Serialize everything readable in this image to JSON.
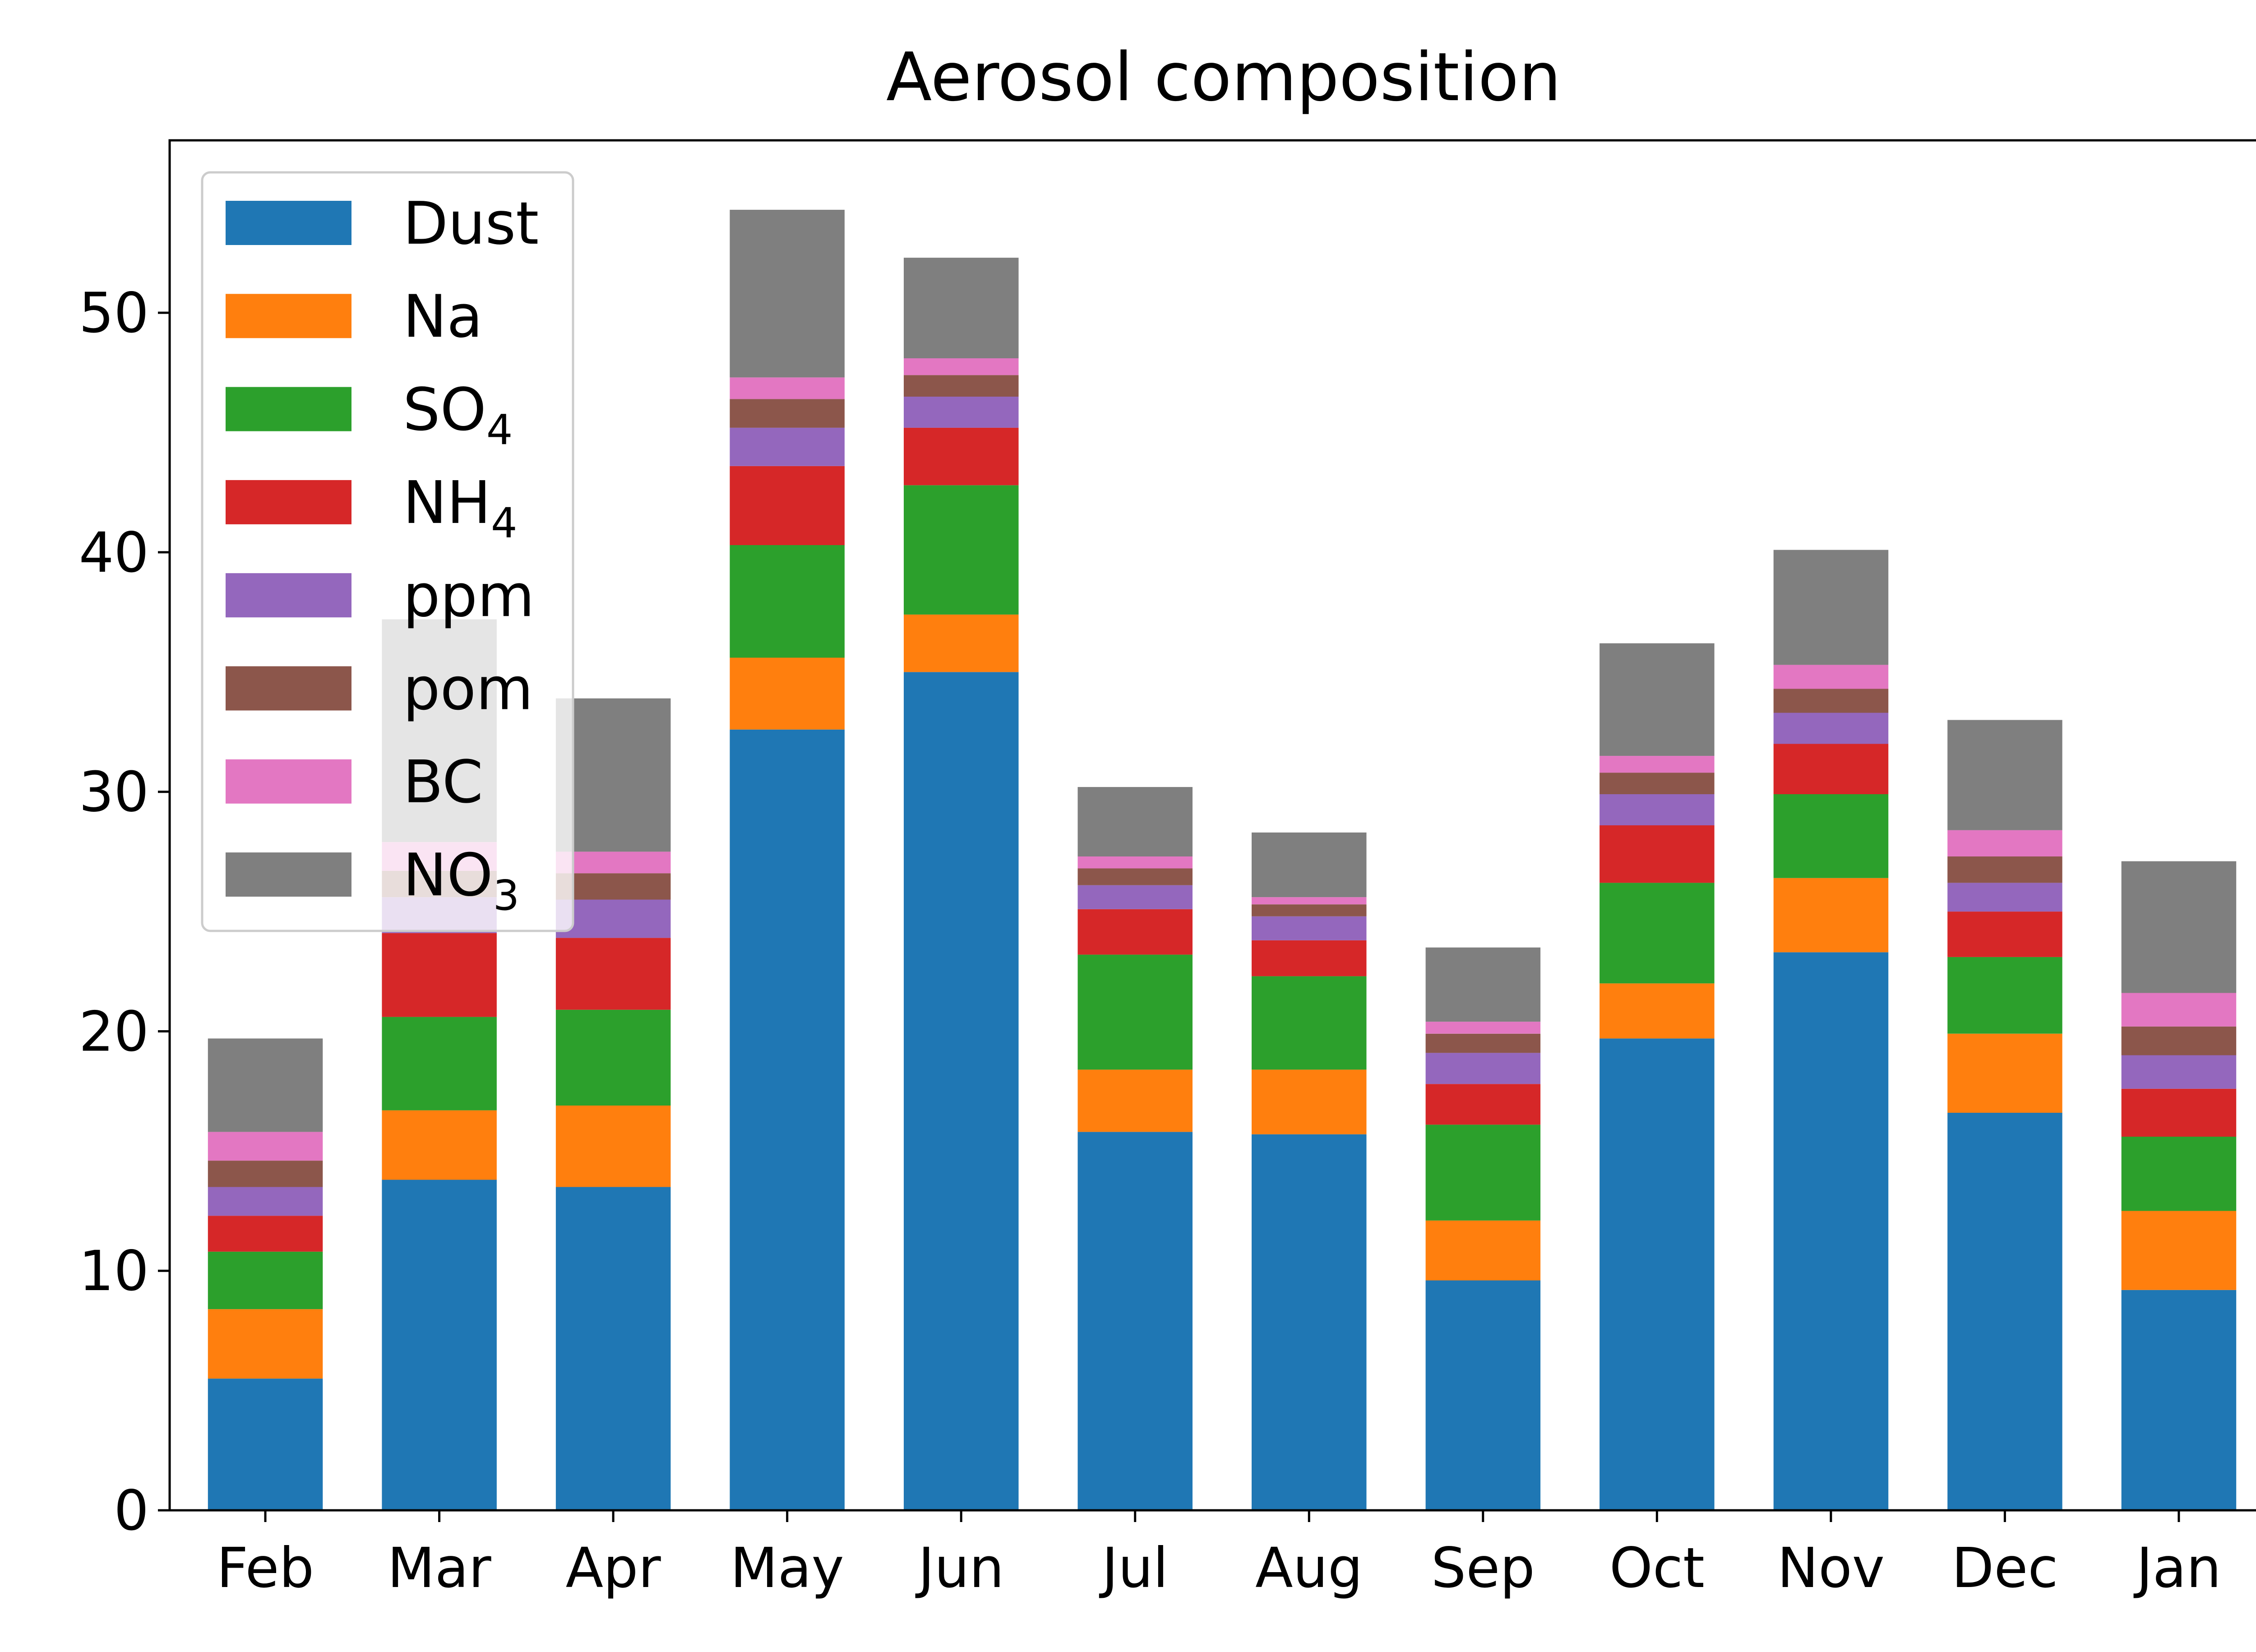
{
  "chart_data": {
    "type": "bar",
    "stacked": true,
    "title": "Aerosol composition",
    "xlabel": "",
    "ylabel": "",
    "categories": [
      "Feb",
      "Mar",
      "Apr",
      "May",
      "Jun",
      "Jul",
      "Aug",
      "Sep",
      "Oct",
      "Nov",
      "Dec",
      "Jan"
    ],
    "ylim": [
      0,
      57.2
    ],
    "yticks": [
      0,
      10,
      20,
      30,
      40,
      50
    ],
    "grid": false,
    "legend_position": "top-left",
    "series": [
      {
        "name": "Dust",
        "color": "#1f77b4",
        "values": [
          5.5,
          13.8,
          13.5,
          32.6,
          35.0,
          15.8,
          15.7,
          9.6,
          19.7,
          23.3,
          16.6,
          9.2
        ]
      },
      {
        "name": "Na",
        "color": "#ff7f0e",
        "values": [
          2.9,
          2.9,
          3.4,
          3.0,
          2.4,
          2.6,
          2.7,
          2.5,
          2.3,
          3.1,
          3.3,
          3.3
        ]
      },
      {
        "name": "SO4",
        "color": "#2ca02c",
        "values": [
          2.4,
          3.9,
          4.0,
          4.7,
          5.4,
          4.8,
          3.9,
          4.0,
          4.2,
          3.5,
          3.2,
          3.1
        ]
      },
      {
        "name": "NH4",
        "color": "#d62728",
        "values": [
          1.5,
          3.5,
          3.0,
          3.3,
          2.4,
          1.9,
          1.5,
          1.7,
          2.4,
          2.1,
          1.9,
          2.0
        ]
      },
      {
        "name": "ppm",
        "color": "#9467bd",
        "values": [
          1.2,
          1.5,
          1.6,
          1.6,
          1.3,
          1.0,
          1.0,
          1.3,
          1.3,
          1.3,
          1.2,
          1.4
        ]
      },
      {
        "name": "pom",
        "color": "#8c564b",
        "values": [
          1.1,
          1.1,
          1.1,
          1.2,
          0.9,
          0.7,
          0.5,
          0.8,
          0.9,
          1.0,
          1.1,
          1.2
        ]
      },
      {
        "name": "BC",
        "color": "#e377c2",
        "values": [
          1.2,
          1.2,
          0.9,
          0.9,
          0.7,
          0.5,
          0.3,
          0.5,
          0.7,
          1.0,
          1.1,
          1.4
        ]
      },
      {
        "name": "NO3",
        "color": "#7f7f7f",
        "values": [
          3.9,
          9.3,
          6.4,
          7.0,
          4.2,
          2.9,
          2.7,
          3.1,
          4.7,
          4.8,
          4.6,
          5.5
        ]
      }
    ],
    "legend": [
      {
        "base": "Dust",
        "sub": ""
      },
      {
        "base": "Na",
        "sub": ""
      },
      {
        "base": "SO",
        "sub": "4"
      },
      {
        "base": "NH",
        "sub": "4"
      },
      {
        "base": "ppm",
        "sub": ""
      },
      {
        "base": "pom",
        "sub": ""
      },
      {
        "base": "BC",
        "sub": ""
      },
      {
        "base": "NO",
        "sub": "3"
      }
    ]
  }
}
